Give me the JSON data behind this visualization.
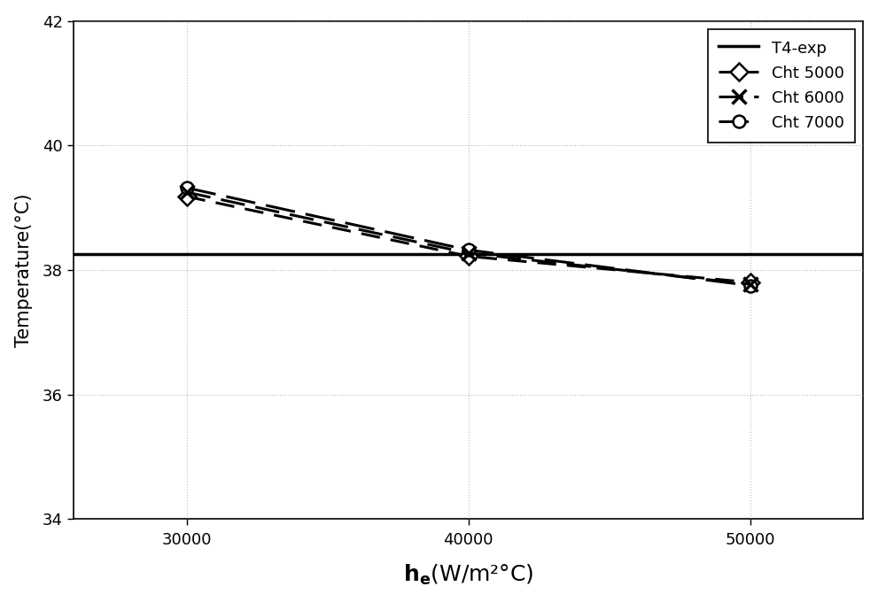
{
  "xlabel_main": "h",
  "xlabel_sub": "e",
  "xlabel_unit": "(W/m²°C)",
  "ylabel": "Temperature(°C)",
  "he_values": [
    30000,
    40000,
    50000
  ],
  "T4_exp": 38.25,
  "cht5000": [
    39.18,
    38.22,
    37.8
  ],
  "cht6000": [
    39.25,
    38.27,
    37.77
  ],
  "cht7000": [
    39.32,
    38.32,
    37.75
  ],
  "ylim": [
    34,
    42
  ],
  "xlim": [
    26000,
    54000
  ],
  "yticks": [
    34,
    36,
    38,
    40,
    42
  ],
  "xticks": [
    30000,
    40000,
    50000
  ],
  "line_color": "#000000",
  "bg_color": "#ffffff",
  "grid_color": "#999999",
  "legend_labels": [
    "T4-exp",
    "Cht 5000",
    "Cht 6000",
    "Cht 7000"
  ]
}
